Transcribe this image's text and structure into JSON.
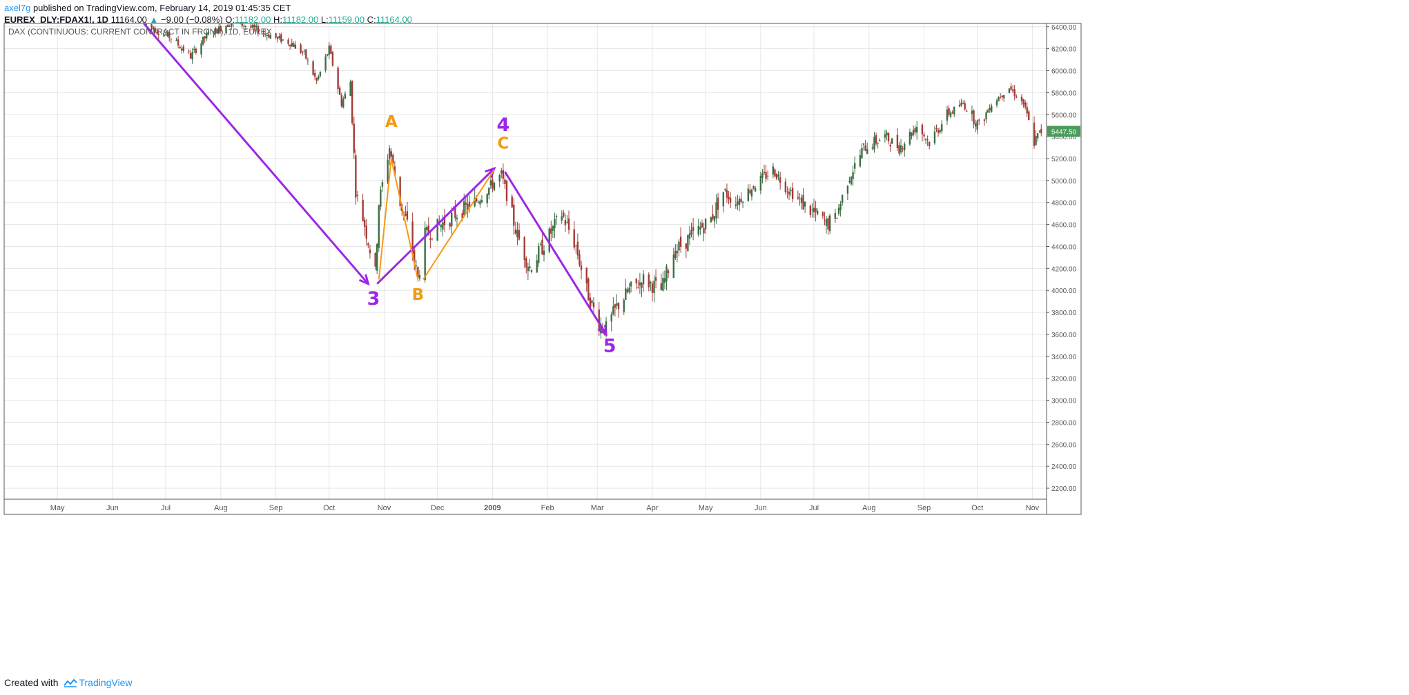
{
  "header": {
    "author": "axel7g",
    "published": "published on TradingView.com, February 14, 2019 01:45:35 CET"
  },
  "symbol_bar": {
    "symbol": "EUREX_DLY:FDAX1!, 1D",
    "last": "11164.00",
    "change": "−9.00 (−0.08%)",
    "ohlc": [
      "O:",
      "11182.00",
      "H:",
      "11182.00",
      "L:",
      "11159.00",
      "C:",
      "11164.00"
    ]
  },
  "chart_title": "DAX (CONTINUOUS: CURRENT CONTRACT IN FRONT), 1D, EUREX",
  "colors": {
    "up": "#3c6e45",
    "down": "#a33b36",
    "wave": "#9c27e6",
    "abc": "#f59a12",
    "grid": "#e6e6e6",
    "axis": "#555555",
    "price_tag": "#4c9a5c"
  },
  "chart_data": {
    "type": "candlestick",
    "title": "DAX (CONTINUOUS: CURRENT CONTRACT IN FRONT), 1D, EUREX",
    "x_ticks": [
      "May",
      "Jun",
      "Jul",
      "Aug",
      "Sep",
      "Oct",
      "Nov",
      "Dec",
      "2009",
      "Feb",
      "Mar",
      "Apr",
      "May",
      "Jun",
      "Jul",
      "Aug",
      "Sep",
      "Oct",
      "Nov"
    ],
    "y_ticks": [
      "2200.00",
      "2400.00",
      "2600.00",
      "2800.00",
      "3000.00",
      "3200.00",
      "3400.00",
      "3600.00",
      "3800.00",
      "4000.00",
      "4200.00",
      "4400.00",
      "4600.00",
      "4800.00",
      "5000.00",
      "5200.00",
      "5400.00",
      "5600.00",
      "5800.00",
      "6000.00",
      "6200.00",
      "6400.00"
    ],
    "ylim": [
      2100,
      6430
    ],
    "last_price_label": "5447.50",
    "close_path": [
      [
        "2008-06-20",
        6420
      ],
      [
        "2008-07-04",
        6300
      ],
      [
        "2008-07-15",
        6130
      ],
      [
        "2008-07-24",
        6320
      ],
      [
        "2008-08-08",
        6450
      ],
      [
        "2008-08-20",
        6380
      ],
      [
        "2008-09-01",
        6300
      ],
      [
        "2008-09-10",
        6250
      ],
      [
        "2008-09-17",
        6150
      ],
      [
        "2008-09-24",
        5900
      ],
      [
        "2008-10-01",
        6200
      ],
      [
        "2008-10-08",
        5700
      ],
      [
        "2008-10-13",
        5900
      ],
      [
        "2008-10-16",
        4900
      ],
      [
        "2008-10-21",
        4600
      ],
      [
        "2008-10-27",
        4150
      ],
      [
        "2008-10-29",
        4800
      ],
      [
        "2008-11-04",
        5300
      ],
      [
        "2008-11-10",
        4800
      ],
      [
        "2008-11-14",
        4600
      ],
      [
        "2008-11-20",
        4100
      ],
      [
        "2008-11-24",
        4500
      ],
      [
        "2008-12-03",
        4600
      ],
      [
        "2008-12-12",
        4700
      ],
      [
        "2008-12-22",
        4800
      ],
      [
        "2009-01-06",
        5050
      ],
      [
        "2009-01-15",
        4500
      ],
      [
        "2009-01-22",
        4200
      ],
      [
        "2009-02-02",
        4500
      ],
      [
        "2009-02-09",
        4700
      ],
      [
        "2009-02-17",
        4400
      ],
      [
        "2009-02-23",
        4000
      ],
      [
        "2009-03-02",
        3700
      ],
      [
        "2009-03-06",
        3650
      ],
      [
        "2009-03-12",
        3850
      ],
      [
        "2009-03-19",
        4000
      ],
      [
        "2009-03-27",
        4100
      ],
      [
        "2009-04-06",
        4000
      ],
      [
        "2009-04-13",
        4350
      ],
      [
        "2009-04-20",
        4450
      ],
      [
        "2009-05-04",
        4650
      ],
      [
        "2009-05-11",
        4900
      ],
      [
        "2009-05-18",
        4800
      ],
      [
        "2009-05-28",
        4950
      ],
      [
        "2009-06-08",
        5100
      ],
      [
        "2009-06-15",
        4950
      ],
      [
        "2009-06-24",
        4800
      ],
      [
        "2009-07-08",
        4600
      ],
      [
        "2009-07-13",
        4650
      ],
      [
        "2009-07-20",
        5000
      ],
      [
        "2009-07-29",
        5300
      ],
      [
        "2009-08-10",
        5400
      ],
      [
        "2009-08-18",
        5300
      ],
      [
        "2009-08-28",
        5500
      ],
      [
        "2009-09-04",
        5350
      ],
      [
        "2009-09-14",
        5600
      ],
      [
        "2009-09-23",
        5700
      ],
      [
        "2009-10-02",
        5500
      ],
      [
        "2009-10-09",
        5700
      ],
      [
        "2009-10-19",
        5850
      ],
      [
        "2009-10-27",
        5700
      ],
      [
        "2009-11-02",
        5350
      ],
      [
        "2009-11-06",
        5447.5
      ]
    ]
  },
  "annotations": {
    "wave_labels": [
      "3",
      "4",
      "5"
    ],
    "abc_labels": [
      "A",
      "B",
      "C"
    ],
    "wave_path": [
      [
        "2008-06-16",
        6480
      ],
      [
        "2008-10-23",
        4060
      ],
      [
        "2008-10-28",
        4060
      ],
      [
        "2009-01-02",
        5110
      ],
      [
        "2009-01-08",
        5080
      ],
      [
        "2009-03-06",
        3600
      ]
    ],
    "abc_path": [
      [
        "2008-10-29",
        4100
      ],
      [
        "2008-11-05",
        5200
      ],
      [
        "2008-11-20",
        4100
      ],
      [
        "2008-11-23",
        4100
      ],
      [
        "2009-01-02",
        5100
      ]
    ]
  },
  "footer": {
    "created_with": "Created with",
    "brand": "TradingView"
  }
}
